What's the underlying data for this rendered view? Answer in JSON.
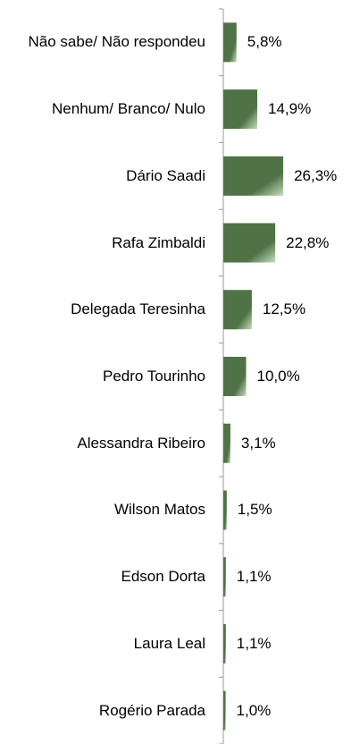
{
  "chart_data": {
    "type": "bar",
    "orientation": "horizontal",
    "color": "#4f7346",
    "categories": [
      "Não sabe/ Não respondeu",
      "Nenhum/ Branco/ Nulo",
      "Dário Saadi",
      "Rafa Zimbaldi",
      "Delegada Teresinha",
      "Pedro Tourinho",
      "Alessandra Ribeiro",
      "Wilson Matos",
      "Edson Dorta",
      "Laura Leal",
      "Rogério Parada"
    ],
    "values": [
      5.8,
      14.9,
      26.3,
      22.8,
      12.5,
      10.0,
      3.1,
      1.5,
      1.1,
      1.1,
      1.0
    ],
    "value_labels": [
      "5,8%",
      "14,9%",
      "26,3%",
      "22,8%",
      "12,5%",
      "10,0%",
      "3,1%",
      "1,5%",
      "1,1%",
      "1,1%",
      "1,0%"
    ]
  }
}
